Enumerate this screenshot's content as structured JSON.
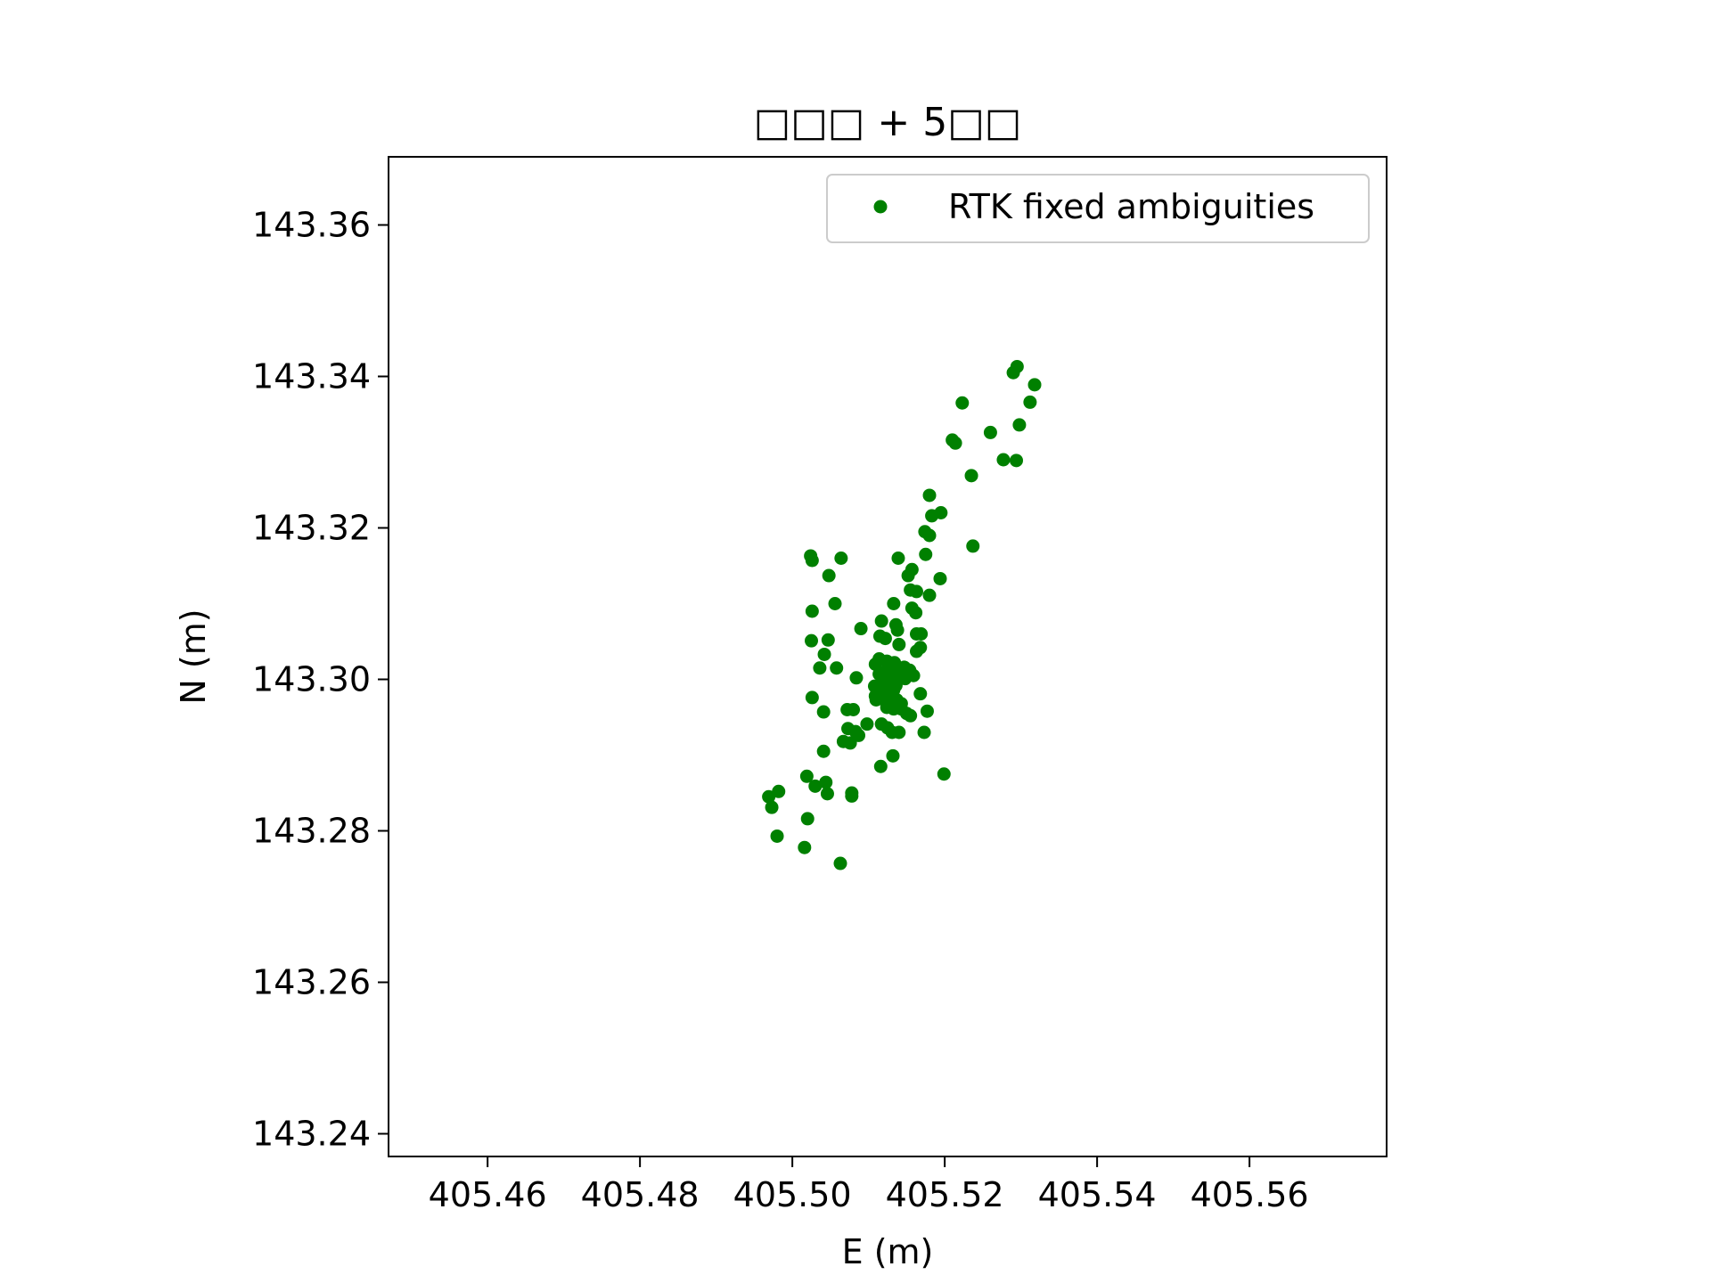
{
  "chart_data": {
    "type": "scatter",
    "title": "□□□ + 5□□",
    "xlabel": "E (m)",
    "ylabel": "N (m)",
    "xlim": [
      405.447,
      405.578
    ],
    "ylim": [
      143.237,
      143.369
    ],
    "xticks": [
      405.46,
      405.48,
      405.5,
      405.52,
      405.54,
      405.56
    ],
    "xtick_labels": [
      "405.46",
      "405.48",
      "405.50",
      "405.52",
      "405.54",
      "405.56"
    ],
    "yticks": [
      143.24,
      143.26,
      143.28,
      143.3,
      143.32,
      143.34,
      143.36
    ],
    "ytick_labels": [
      "143.24",
      "143.26",
      "143.28",
      "143.30",
      "143.32",
      "143.34",
      "143.36"
    ],
    "grid": false,
    "legend_position": "top-right",
    "series": [
      {
        "name": "RTK fixed ambiguities",
        "color": "#008000",
        "marker": "circle",
        "points": [
          [
            405.5295,
            143.3413
          ],
          [
            405.529,
            143.3405
          ],
          [
            405.5318,
            143.3389
          ],
          [
            405.5312,
            143.3366
          ],
          [
            405.5223,
            143.3365
          ],
          [
            405.5298,
            143.3336
          ],
          [
            405.526,
            143.3326
          ],
          [
            405.521,
            143.3316
          ],
          [
            405.5214,
            143.3312
          ],
          [
            405.5277,
            143.329
          ],
          [
            405.5294,
            143.3289
          ],
          [
            405.5235,
            143.3269
          ],
          [
            405.518,
            143.3243
          ],
          [
            405.5195,
            143.322
          ],
          [
            405.5183,
            143.3216
          ],
          [
            405.5174,
            143.3195
          ],
          [
            405.518,
            143.319
          ],
          [
            405.5237,
            143.3176
          ],
          [
            405.5024,
            143.3163
          ],
          [
            405.5064,
            143.316
          ],
          [
            405.5026,
            143.3157
          ],
          [
            405.5139,
            143.316
          ],
          [
            405.5175,
            143.3165
          ],
          [
            405.5157,
            143.3145
          ],
          [
            405.5152,
            143.3137
          ],
          [
            405.5048,
            143.3137
          ],
          [
            405.5194,
            143.3133
          ],
          [
            405.5155,
            143.3118
          ],
          [
            405.5163,
            143.3116
          ],
          [
            405.518,
            143.3111
          ],
          [
            405.5056,
            143.31
          ],
          [
            405.5133,
            143.31
          ],
          [
            405.5026,
            143.309
          ],
          [
            405.5157,
            143.3094
          ],
          [
            405.5162,
            143.3088
          ],
          [
            405.5117,
            143.3077
          ],
          [
            405.5136,
            143.3072
          ],
          [
            405.509,
            143.3067
          ],
          [
            405.5138,
            143.3065
          ],
          [
            405.5163,
            143.306
          ],
          [
            405.5169,
            143.306
          ],
          [
            405.5115,
            143.3057
          ],
          [
            405.5122,
            143.3054
          ],
          [
            405.5025,
            143.3051
          ],
          [
            405.5047,
            143.3052
          ],
          [
            405.514,
            143.3046
          ],
          [
            405.5168,
            143.3042
          ],
          [
            405.5163,
            143.3037
          ],
          [
            405.5042,
            143.3033
          ],
          [
            405.5114,
            143.3027
          ],
          [
            405.5124,
            143.3024
          ],
          [
            405.5134,
            143.3022
          ],
          [
            405.5109,
            143.302
          ],
          [
            405.5147,
            143.3016
          ],
          [
            405.5036,
            143.3015
          ],
          [
            405.5058,
            143.3015
          ],
          [
            405.5124,
            143.3012
          ],
          [
            405.5134,
            143.301
          ],
          [
            405.5144,
            143.301
          ],
          [
            405.5154,
            143.3012
          ],
          [
            405.5159,
            143.3005
          ],
          [
            405.5114,
            143.3007
          ],
          [
            405.5121,
            143.3002
          ],
          [
            405.5131,
            143.3
          ],
          [
            405.5141,
            143.3004
          ],
          [
            405.5148,
            143.3001
          ],
          [
            405.5084,
            143.3002
          ],
          [
            405.5119,
            143.2995
          ],
          [
            405.5128,
            143.2994
          ],
          [
            405.5136,
            143.2992
          ],
          [
            405.5108,
            143.2991
          ],
          [
            405.5114,
            143.2988
          ],
          [
            405.5125,
            143.2984
          ],
          [
            405.5133,
            143.2986
          ],
          [
            405.5168,
            143.2981
          ],
          [
            405.5109,
            143.2978
          ],
          [
            405.5026,
            143.2976
          ],
          [
            405.511,
            143.2973
          ],
          [
            405.5121,
            143.2973
          ],
          [
            405.5129,
            143.2974
          ],
          [
            405.5137,
            143.2973
          ],
          [
            405.5143,
            143.2968
          ],
          [
            405.5124,
            143.2963
          ],
          [
            405.5133,
            143.2961
          ],
          [
            405.5143,
            143.2961
          ],
          [
            405.5072,
            143.296
          ],
          [
            405.508,
            143.296
          ],
          [
            405.5041,
            143.2957
          ],
          [
            405.5177,
            143.2958
          ],
          [
            405.515,
            143.2955
          ],
          [
            405.5155,
            143.2952
          ],
          [
            405.5098,
            143.2941
          ],
          [
            405.5117,
            143.2941
          ],
          [
            405.5125,
            143.2936
          ],
          [
            405.5073,
            143.2935
          ],
          [
            405.5083,
            143.2931
          ],
          [
            405.514,
            143.293
          ],
          [
            405.5087,
            143.2926
          ],
          [
            405.5173,
            143.293
          ],
          [
            405.5131,
            143.293
          ],
          [
            405.5067,
            143.2918
          ],
          [
            405.5076,
            143.2916
          ],
          [
            405.5041,
            143.2905
          ],
          [
            405.5132,
            143.2899
          ],
          [
            405.5116,
            143.2885
          ],
          [
            405.5199,
            143.2875
          ],
          [
            405.5019,
            143.2872
          ],
          [
            405.503,
            143.2859
          ],
          [
            405.5044,
            143.2864
          ],
          [
            405.5046,
            143.2849
          ],
          [
            405.5078,
            143.285
          ],
          [
            405.5078,
            143.2846
          ],
          [
            405.4982,
            143.2852
          ],
          [
            405.4969,
            143.2845
          ],
          [
            405.4973,
            143.2831
          ],
          [
            405.502,
            143.2816
          ],
          [
            405.498,
            143.2793
          ],
          [
            405.5016,
            143.2778
          ],
          [
            405.5063,
            143.2757
          ]
        ]
      }
    ]
  }
}
